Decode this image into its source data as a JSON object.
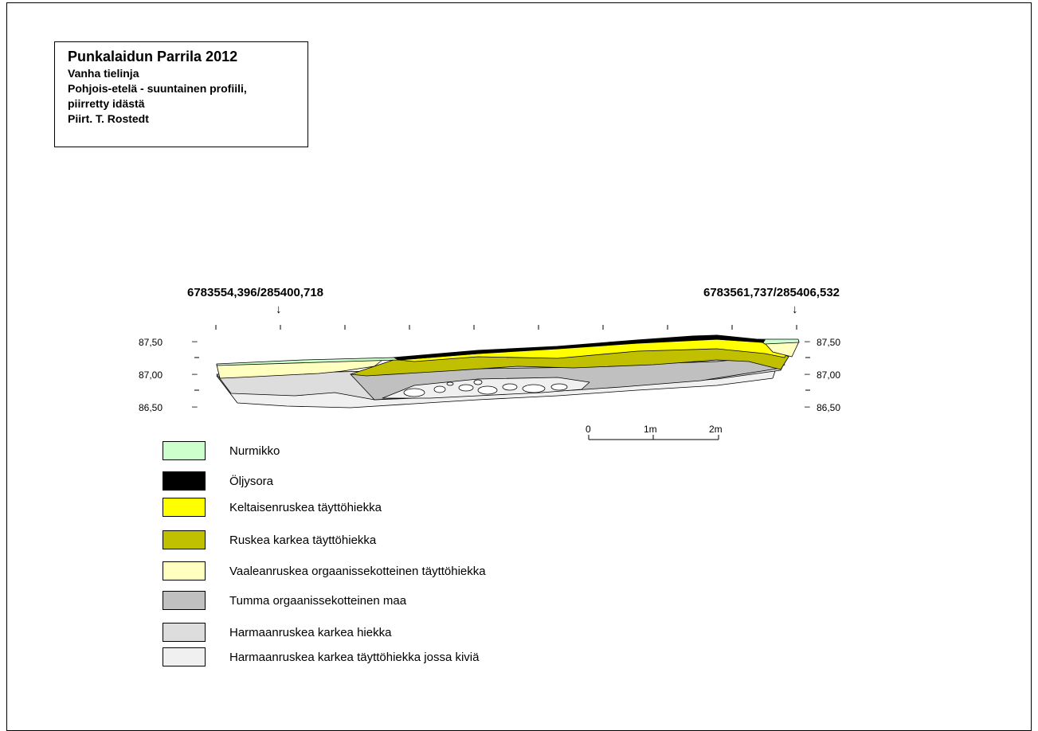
{
  "title_block": {
    "title": "Punkalaidun Parrila 2012",
    "lines": [
      "Vanha tielinja",
      "Pohjois-etelä - suuntainen profiili,",
      "piirretty idästä",
      "Piirt. T. Rostedt"
    ]
  },
  "profile": {
    "coord_left": "6783554,396/285400,718",
    "coord_right": "6783561,737/285406,532",
    "arrow_glyph": "↓",
    "levels_left": [
      "87,50",
      "87,00",
      "86,50"
    ],
    "levels_right": [
      "87,50",
      "87,00",
      "86,50"
    ],
    "tick_dash": "–"
  },
  "scale_bar": {
    "labels": [
      "0",
      "1m",
      "2m"
    ]
  },
  "legend": [
    {
      "label": "Nurmikko",
      "color": "#ccffcc"
    },
    {
      "label": "Öljysora",
      "color": "#000000"
    },
    {
      "label": "Keltaisenruskea täyttöhiekka",
      "color": "#ffff00"
    },
    {
      "label": "Ruskea karkea täyttöhiekka",
      "color": "#c0c000"
    },
    {
      "label": "Vaaleanruskea orgaanissekotteinen täyttöhiekka",
      "color": "#ffffc0"
    },
    {
      "label": "Tumma orgaanissekotteinen maa",
      "color": "#c0c0c0"
    },
    {
      "label": "Harmaanruskea karkea hiekka",
      "color": "#dddddd"
    },
    {
      "label": "Harmaanruskea karkea täyttöhiekka jossa kiviä",
      "color": "#f0f0f0"
    }
  ]
}
